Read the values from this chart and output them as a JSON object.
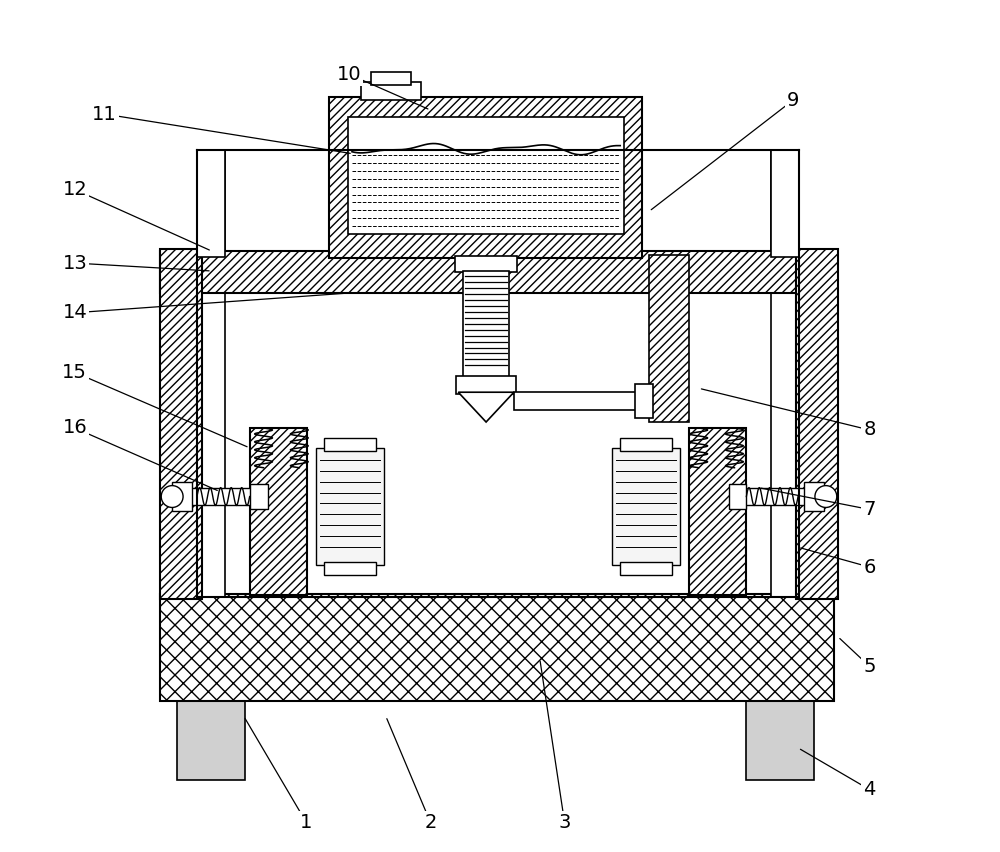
{
  "bg_color": "#ffffff",
  "line_color": "#000000",
  "figsize": [
    10.0,
    8.52
  ],
  "dpi": 100,
  "annotations": [
    [
      "1",
      305,
      825,
      242,
      718
    ],
    [
      "2",
      430,
      825,
      385,
      718
    ],
    [
      "3",
      565,
      825,
      540,
      660
    ],
    [
      "4",
      872,
      792,
      800,
      750
    ],
    [
      "5",
      872,
      668,
      840,
      638
    ],
    [
      "6",
      872,
      568,
      800,
      548
    ],
    [
      "7",
      872,
      510,
      760,
      488
    ],
    [
      "8",
      872,
      430,
      700,
      388
    ],
    [
      "9",
      795,
      98,
      650,
      210
    ],
    [
      "10",
      348,
      72,
      430,
      108
    ],
    [
      "11",
      102,
      112,
      352,
      152
    ],
    [
      "12",
      72,
      188,
      210,
      250
    ],
    [
      "13",
      72,
      262,
      210,
      270
    ],
    [
      "14",
      72,
      312,
      350,
      292
    ],
    [
      "15",
      72,
      372,
      248,
      448
    ],
    [
      "16",
      72,
      428,
      218,
      492
    ]
  ]
}
